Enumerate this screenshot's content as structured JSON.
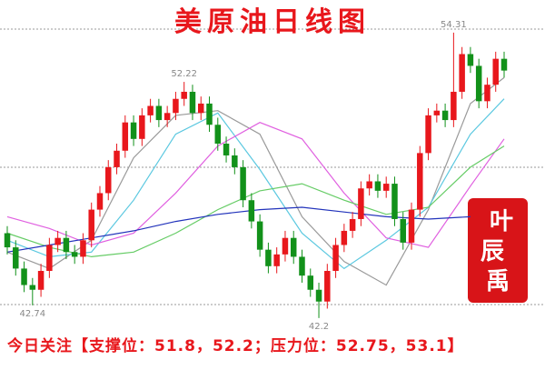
{
  "chart_data": {
    "type": "candlestick",
    "title": "美原油日线图",
    "open": [
      45.8,
      45.2,
      44.3,
      43.6,
      43.4,
      44.2,
      45.3,
      45.6,
      45.0,
      44.8,
      45.5,
      46.8,
      47.5,
      48.6,
      49.3,
      50.5,
      49.8,
      50.8,
      51.2,
      50.6,
      50.9,
      51.5,
      51.8,
      50.9,
      51.3,
      50.4,
      49.6,
      49.1,
      48.6,
      47.2,
      46.3,
      45.1,
      44.4,
      44.9,
      45.6,
      44.8,
      44.0,
      43.4,
      42.9,
      44.2,
      45.3,
      45.9,
      46.4,
      47.7,
      48.0,
      47.6,
      47.9,
      46.4,
      45.4,
      46.8,
      49.2,
      50.8,
      51.0,
      50.6,
      51.8,
      53.4,
      52.9,
      51.4,
      52.1,
      53.2
    ],
    "high": [
      46.1,
      45.5,
      44.6,
      43.9,
      44.5,
      45.6,
      45.9,
      45.9,
      45.3,
      45.8,
      47.1,
      47.8,
      48.9,
      49.6,
      50.8,
      50.8,
      51.1,
      51.5,
      51.5,
      51.2,
      51.8,
      52.22,
      52.1,
      51.6,
      51.6,
      50.7,
      49.9,
      49.4,
      48.9,
      47.5,
      46.6,
      45.4,
      45.2,
      45.9,
      45.9,
      45.1,
      44.3,
      43.7,
      44.5,
      45.6,
      46.2,
      46.7,
      48.0,
      48.3,
      48.3,
      48.2,
      48.2,
      46.7,
      47.1,
      49.5,
      51.1,
      51.3,
      51.3,
      54.31,
      53.7,
      53.7,
      53.2,
      52.4,
      53.5,
      53.5
    ],
    "low": [
      44.9,
      44.0,
      43.3,
      42.74,
      43.1,
      43.9,
      45.0,
      44.7,
      44.5,
      44.5,
      45.2,
      46.5,
      47.2,
      48.3,
      49.0,
      49.5,
      49.5,
      50.5,
      50.3,
      50.3,
      50.6,
      51.2,
      50.6,
      50.6,
      50.1,
      49.3,
      48.8,
      48.3,
      46.9,
      46.0,
      44.8,
      44.1,
      44.1,
      44.6,
      44.5,
      43.7,
      43.1,
      42.2,
      42.6,
      43.9,
      45.0,
      45.6,
      46.1,
      47.4,
      47.3,
      47.3,
      46.1,
      45.1,
      45.1,
      46.5,
      48.9,
      50.5,
      50.3,
      50.3,
      51.5,
      52.6,
      51.1,
      51.1,
      51.8,
      52.4
    ],
    "close": [
      45.2,
      44.3,
      43.6,
      43.4,
      44.2,
      45.3,
      45.6,
      45.0,
      44.8,
      45.5,
      46.8,
      47.5,
      48.6,
      49.3,
      50.5,
      49.8,
      50.8,
      51.2,
      50.6,
      50.9,
      51.5,
      51.8,
      50.9,
      51.3,
      50.4,
      49.6,
      49.1,
      48.6,
      47.2,
      46.3,
      45.1,
      44.4,
      44.9,
      45.6,
      44.8,
      44.0,
      43.4,
      42.9,
      44.2,
      45.3,
      45.9,
      46.4,
      47.7,
      48.0,
      47.6,
      47.9,
      46.4,
      45.4,
      46.8,
      49.2,
      50.8,
      51.0,
      50.6,
      51.8,
      53.4,
      52.9,
      51.4,
      52.1,
      53.2,
      52.7
    ],
    "up_color": "#e8171c",
    "down_color": "#12911a",
    "lines": [
      {
        "color": "#9a9a9a",
        "x": [
          0,
          5,
          10,
          15,
          20,
          25,
          30,
          35,
          40,
          45,
          50,
          55,
          59
        ],
        "values": [
          45.0,
          44.3,
          45.5,
          49.0,
          50.8,
          51.0,
          50.0,
          46.5,
          44.6,
          43.6,
          46.8,
          51.3,
          52.4
        ]
      },
      {
        "color": "#5bc8e0",
        "x": [
          0,
          5,
          10,
          15,
          20,
          25,
          30,
          35,
          40,
          45,
          50,
          55,
          59
        ],
        "values": [
          45.5,
          44.8,
          45.0,
          47.2,
          50.0,
          50.9,
          48.5,
          45.8,
          44.3,
          45.5,
          46.9,
          50.0,
          51.5
        ]
      },
      {
        "color": "#e060e0",
        "x": [
          0,
          5,
          10,
          15,
          20,
          25,
          30,
          35,
          40,
          45,
          50,
          55,
          59
        ],
        "values": [
          46.5,
          46.0,
          45.3,
          45.8,
          47.5,
          49.5,
          50.5,
          49.8,
          47.5,
          45.6,
          45.2,
          47.8,
          49.8
        ]
      },
      {
        "color": "#66cc66",
        "x": [
          0,
          5,
          10,
          15,
          20,
          25,
          30,
          35,
          40,
          45,
          50,
          55,
          59
        ],
        "values": [
          45.8,
          45.2,
          44.8,
          45.0,
          45.8,
          46.8,
          47.6,
          47.9,
          47.2,
          46.6,
          46.9,
          48.6,
          49.5
        ]
      },
      {
        "color": "#2233bb",
        "x": [
          0,
          5,
          10,
          15,
          20,
          25,
          30,
          35,
          40,
          45,
          50,
          55
        ],
        "values": [
          45.0,
          45.3,
          45.6,
          45.9,
          46.3,
          46.6,
          46.8,
          46.9,
          46.7,
          46.5,
          46.4,
          46.5
        ]
      }
    ],
    "ylim": [
      41.5,
      55.0
    ],
    "annotations": [
      "54.31",
      "52.22",
      "42.74",
      "42.2"
    ],
    "note": "今日关注【支撑位：51.8，52.2；压力位：52.75，53.1】",
    "logo": [
      "叶",
      "辰",
      "禹"
    ]
  }
}
